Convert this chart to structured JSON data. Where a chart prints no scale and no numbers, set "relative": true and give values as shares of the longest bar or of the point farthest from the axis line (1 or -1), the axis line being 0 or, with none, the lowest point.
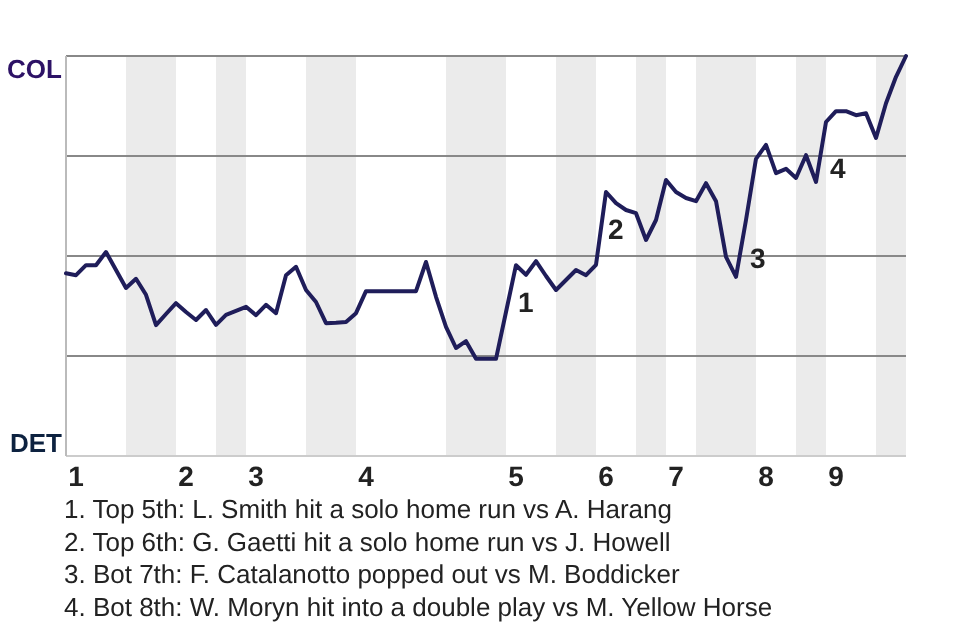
{
  "chart_data": {
    "type": "line",
    "relative": true,
    "categories": [
      null,
      "1",
      null,
      null,
      null,
      null,
      null,
      null,
      null,
      null,
      null,
      null,
      "2",
      null,
      null,
      null,
      null,
      null,
      null,
      "3",
      null,
      null,
      null,
      null,
      null,
      null,
      null,
      null,
      null,
      null,
      "4",
      null,
      null,
      null,
      null,
      null,
      null,
      null,
      null,
      null,
      null,
      null,
      null,
      null,
      null,
      "5",
      null,
      null,
      null,
      null,
      null,
      null,
      null,
      null,
      "6",
      null,
      null,
      null,
      null,
      null,
      null,
      "7",
      null,
      null,
      null,
      null,
      null,
      null,
      null,
      null,
      "8",
      null,
      null,
      null,
      null,
      null,
      null,
      "9",
      null,
      null,
      null,
      null,
      null,
      null,
      null
    ],
    "grid": "y",
    "series": [
      {
        "color": "#1f1d5a",
        "values": [
          0.457,
          0.452,
          0.477,
          0.477,
          0.51,
          0.465,
          0.42,
          0.443,
          0.403,
          0.327,
          0.355,
          0.382,
          0.36,
          0.34,
          0.365,
          0.328,
          0.353,
          0.363,
          0.373,
          0.352,
          0.378,
          0.357,
          0.452,
          0.473,
          0.415,
          0.385,
          0.332,
          0.333,
          0.335,
          0.357,
          0.412,
          0.412,
          0.412,
          0.412,
          0.412,
          0.412,
          0.485,
          0.398,
          0.323,
          0.27,
          0.287,
          0.243,
          0.243,
          0.243,
          0.36,
          0.477,
          0.453,
          0.487,
          0.45,
          0.415,
          0.44,
          0.465,
          0.452,
          0.478,
          0.66,
          0.632,
          0.615,
          0.607,
          0.54,
          0.59,
          0.69,
          0.66,
          0.645,
          0.637,
          0.682,
          0.637,
          0.498,
          0.448,
          0.59,
          0.743,
          0.778,
          0.707,
          0.718,
          0.695,
          0.752,
          0.685,
          0.835,
          0.862,
          0.862,
          0.852,
          0.857,
          0.795,
          0.882,
          0.948,
          1
        ]
      }
    ],
    "annotations": [
      {
        "text": "1",
        "x": "5",
        "y": 0.477
      },
      {
        "text": "2",
        "x": "6",
        "y": 0.66
      },
      "3",
      "4",
      "COL",
      "DET",
      "1. Top 5th: L. Smith hit a solo home run vs A. Harang",
      "2. Top 6th: G. Gaetti hit a solo home run vs J. Howell",
      "3. Bot 7th: F. Catalanotto popped out vs M. Boddicker",
      "4. Bot 8th: W. Moryn hit into a double play vs M. Yellow Horse"
    ]
  }
}
